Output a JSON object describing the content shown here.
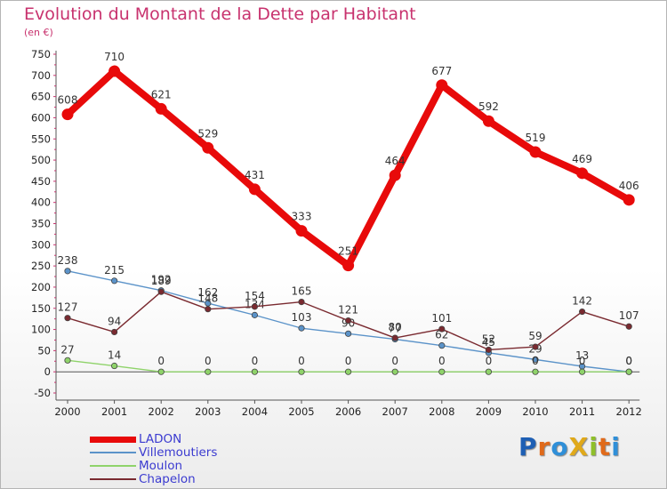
{
  "title": "Evolution du Montant de la Dette par Habitant",
  "unit_label": "(en €)",
  "logo": {
    "text": "ProXiti",
    "letters": [
      {
        "ch": "P",
        "color": "#1e5fb4"
      },
      {
        "ch": "r",
        "color": "#e06a1a"
      },
      {
        "ch": "o",
        "color": "#2f8fd8"
      },
      {
        "ch": "X",
        "color": "#e0a91a"
      },
      {
        "ch": "i",
        "color": "#8fbf2a"
      },
      {
        "ch": "t",
        "color": "#e06a1a"
      },
      {
        "ch": "i",
        "color": "#2f8fd8"
      }
    ]
  },
  "chart_data": {
    "type": "line",
    "title": "Evolution du Montant de la Dette par Habitant",
    "ylabel": "(en €)",
    "xlabel": "",
    "ylim": [
      -50,
      750
    ],
    "yticks": [
      -50,
      0,
      50,
      100,
      150,
      200,
      250,
      300,
      350,
      400,
      450,
      500,
      550,
      600,
      650,
      700,
      750
    ],
    "categories": [
      "2000",
      "2001",
      "2002",
      "2003",
      "2004",
      "2005",
      "2006",
      "2007",
      "2008",
      "2009",
      "2010",
      "2011",
      "2012"
    ],
    "grid": false,
    "legend_position": "bottom-left",
    "series": [
      {
        "name": "LADON",
        "color": "#e80a0a",
        "values": [
          608,
          710,
          621,
          529,
          431,
          333,
          251,
          464,
          677,
          592,
          519,
          469,
          406
        ]
      },
      {
        "name": "Villemoutiers",
        "color": "#5b93c9",
        "values": [
          238,
          215,
          192,
          162,
          134,
          103,
          90,
          77,
          62,
          45,
          29,
          13,
          0
        ]
      },
      {
        "name": "Moulon",
        "color": "#8fd36a",
        "values": [
          27,
          14,
          0,
          0,
          0,
          0,
          0,
          0,
          0,
          0,
          0,
          0,
          0
        ]
      },
      {
        "name": "Chapelon",
        "color": "#7a2a30",
        "values": [
          127,
          94,
          189,
          148,
          154,
          165,
          121,
          80,
          101,
          52,
          59,
          142,
          107
        ]
      }
    ]
  }
}
